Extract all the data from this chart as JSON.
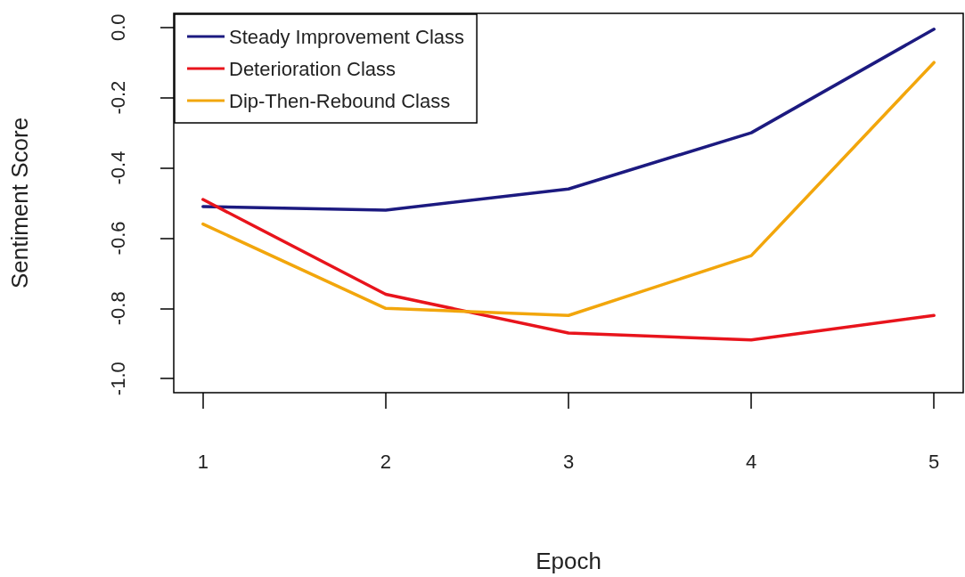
{
  "chart_data": {
    "type": "line",
    "xlabel": "Epoch",
    "ylabel": "Sentiment Score",
    "x": [
      1,
      2,
      3,
      4,
      5
    ],
    "series": [
      {
        "name": "Steady Improvement Class",
        "color": "#1c1a80",
        "values": [
          -0.51,
          -0.52,
          -0.46,
          -0.3,
          -0.005
        ]
      },
      {
        "name": "Deterioration Class",
        "color": "#e8141c",
        "values": [
          -0.49,
          -0.76,
          -0.87,
          -0.89,
          -0.82
        ]
      },
      {
        "name": "Dip-Then-Rebound Class",
        "color": "#f2a60c",
        "values": [
          -0.56,
          -0.8,
          -0.82,
          -0.65,
          -0.1
        ]
      }
    ],
    "xlim": [
      0.84,
      5.16
    ],
    "xticks": [
      1,
      2,
      3,
      4,
      5
    ],
    "ylim": [
      -1.04,
      0.04
    ],
    "yticks": [
      {
        "value": -1.0,
        "label": "-1.0"
      },
      {
        "value": -0.8,
        "label": "-0.8"
      },
      {
        "value": -0.6,
        "label": "-0.6"
      },
      {
        "value": -0.4,
        "label": "-0.4"
      },
      {
        "value": -0.2,
        "label": "-0.2"
      },
      {
        "value": 0,
        "label": "0.0"
      }
    ],
    "grid": false,
    "legend": "top left",
    "marker": "none",
    "line_style": "solid"
  }
}
